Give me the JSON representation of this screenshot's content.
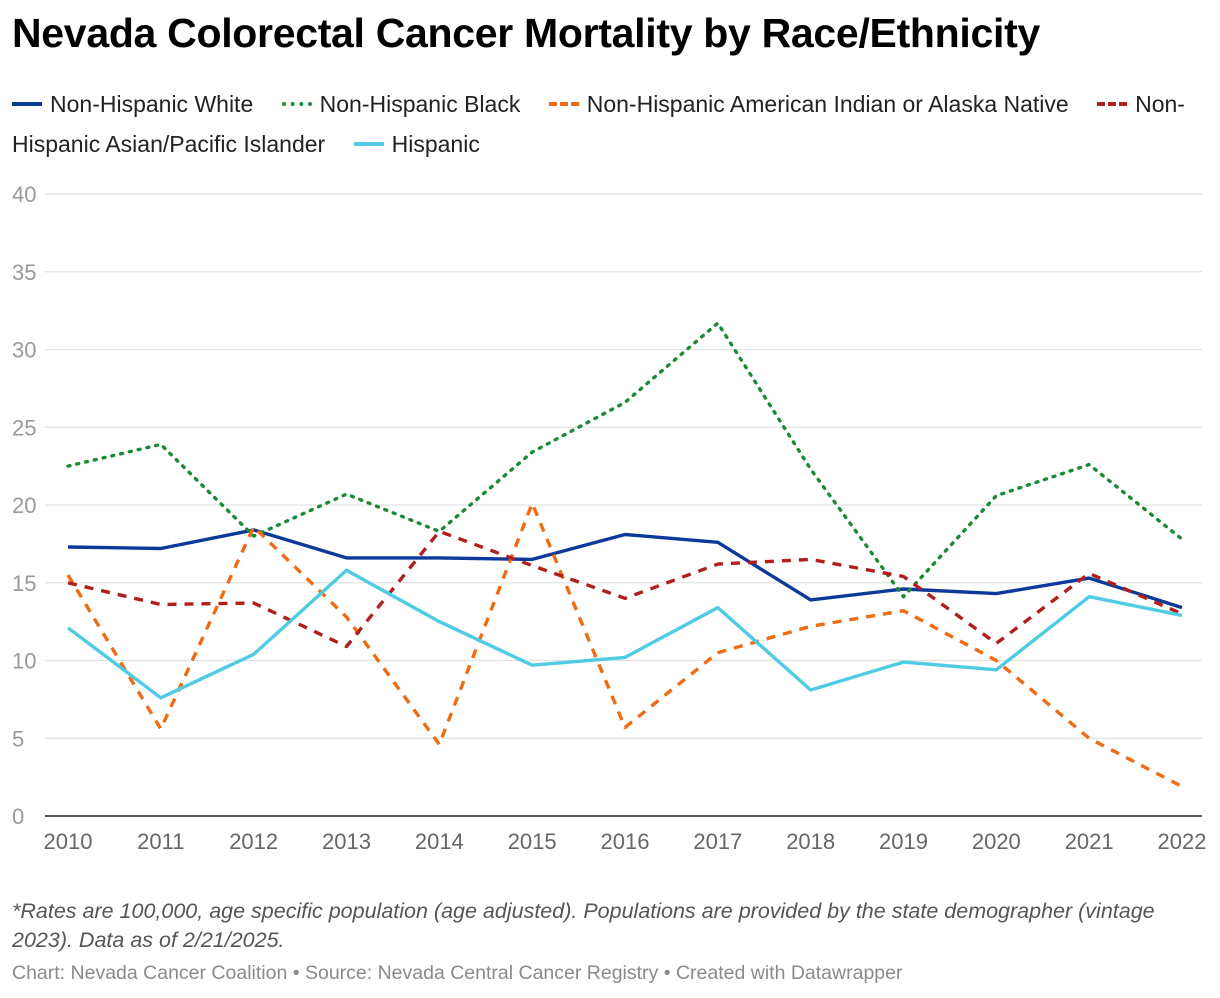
{
  "chart_data": {
    "type": "line",
    "title": "Nevada Colorectal Cancer Mortality by Race/Ethnicity",
    "x": [
      "2010",
      "2011",
      "2012",
      "2013",
      "2014",
      "2015",
      "2016",
      "2017",
      "2018",
      "2019",
      "2020",
      "2021",
      "2022"
    ],
    "ylim": [
      0,
      40
    ],
    "yticks": [
      0,
      5,
      10,
      15,
      20,
      25,
      30,
      35,
      40
    ],
    "grid": true,
    "legend_position": "top",
    "series": [
      {
        "name": "Non-Hispanic White",
        "color": "#0b3a9a",
        "dash": "solid",
        "values": [
          17.3,
          17.2,
          18.4,
          16.6,
          16.6,
          16.5,
          18.1,
          17.6,
          13.9,
          14.6,
          14.3,
          15.3,
          13.4
        ]
      },
      {
        "name": "Non-Hispanic Black",
        "color": "#1a8a37",
        "dash": "dotted",
        "values": [
          22.5,
          23.9,
          18.0,
          20.7,
          18.3,
          23.4,
          26.6,
          31.7,
          22.3,
          14.1,
          20.6,
          22.6,
          17.8
        ]
      },
      {
        "name": "Non-Hispanic American Indian or Alaska Native",
        "color": "#f06b12",
        "dash": "dashed",
        "values": [
          15.5,
          5.6,
          18.6,
          12.8,
          4.6,
          20.1,
          5.7,
          10.5,
          12.2,
          13.2,
          10.0,
          5.0,
          1.9
        ]
      },
      {
        "name": "Non-Hispanic Asian/Pacific Islander",
        "color": "#b01e1e",
        "dash": "dashed",
        "values": [
          15.0,
          13.6,
          13.7,
          10.9,
          18.3,
          16.1,
          14.0,
          16.2,
          16.5,
          15.4,
          11.1,
          15.6,
          13.0
        ]
      },
      {
        "name": "Hispanic",
        "color": "#4fcbe3",
        "dash": "solid",
        "values": [
          12.1,
          7.6,
          10.4,
          15.8,
          12.5,
          9.7,
          10.2,
          13.4,
          8.1,
          9.9,
          9.4,
          14.1,
          12.9
        ]
      }
    ]
  },
  "footer": {
    "note": "*Rates are 100,000, age specific population (age adjusted). Populations are provided by the state demographer (vintage 2023). Data as of 2/21/2025.",
    "credits": "Chart: Nevada Cancer Coalition • Source: Nevada Central Cancer Registry • Created with Datawrapper"
  }
}
